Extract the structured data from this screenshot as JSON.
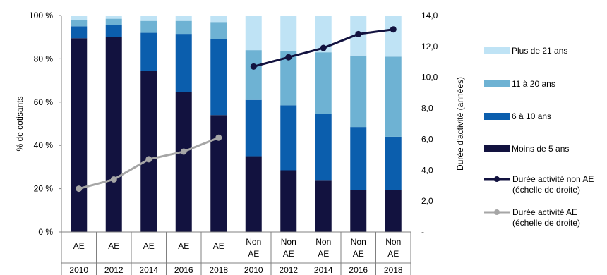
{
  "chart_data": {
    "type": "bar",
    "stacked": true,
    "category_groups": [
      {
        "label": "AE",
        "year": "2010"
      },
      {
        "label": "AE",
        "year": "2012"
      },
      {
        "label": "AE",
        "year": "2014"
      },
      {
        "label": "AE",
        "year": "2016"
      },
      {
        "label": "AE",
        "year": "2018"
      },
      {
        "label": "Non AE",
        "year": "2010"
      },
      {
        "label": "Non AE",
        "year": "2012"
      },
      {
        "label": "Non AE",
        "year": "2014"
      },
      {
        "label": "Non AE",
        "year": "2016"
      },
      {
        "label": "Non AE",
        "year": "2018"
      }
    ],
    "series": [
      {
        "name": "Moins de 5 ans",
        "color": "#12123f",
        "values": [
          89.5,
          90,
          74.5,
          64.5,
          54,
          35,
          28.5,
          24,
          19.5,
          19.5
        ]
      },
      {
        "name": "6 à 10 ans",
        "color": "#0b5ead",
        "values": [
          5.5,
          5.5,
          17.5,
          27,
          35,
          26,
          30,
          30.5,
          29,
          24.5
        ]
      },
      {
        "name": "11 à 20 ans",
        "color": "#6eb2d3",
        "values": [
          3,
          3,
          5.5,
          6,
          8,
          23,
          25,
          28.5,
          33,
          37
        ]
      },
      {
        "name": "Plus de 21 ans",
        "color": "#bfe3f5",
        "values": [
          2,
          1.5,
          2.5,
          2.5,
          3,
          16,
          16.5,
          17,
          18.5,
          19
        ]
      }
    ],
    "lines": [
      {
        "name": "Durée activité non AE (échelle de droite)",
        "color": "#12123f",
        "indices": [
          5,
          6,
          7,
          8,
          9
        ],
        "values": [
          10.7,
          11.3,
          11.9,
          12.8,
          13.1
        ]
      },
      {
        "name": "Durée activité AE (échelle de droite)",
        "color": "#a6a6a6",
        "indices": [
          0,
          1,
          2,
          3,
          4
        ],
        "values": [
          2.8,
          3.4,
          4.7,
          5.2,
          6.1
        ]
      }
    ],
    "ylabel": "% de cotisants",
    "y2label": "Durée d'activité (années)",
    "ylim": [
      0,
      100
    ],
    "y2lim": [
      0,
      14
    ],
    "yticks": [
      "0 %",
      "20 %",
      "40 %",
      "60 %",
      "80 %",
      "100 %"
    ],
    "y2ticks": [
      "-",
      "2,0",
      "4,0",
      "6,0",
      "8,0",
      "10,0",
      "12,0",
      "14,0"
    ],
    "legend_items": [
      {
        "label": "Plus de 21 ans",
        "kind": "box",
        "color": "#bfe3f5"
      },
      {
        "label": "11 à 20 ans",
        "kind": "box",
        "color": "#6eb2d3"
      },
      {
        "label": "6 à 10 ans",
        "kind": "box",
        "color": "#0b5ead"
      },
      {
        "label": "Moins de 5 ans",
        "kind": "box",
        "color": "#12123f"
      },
      {
        "label": [
          "Durée activité non AE",
          "(échelle de droite)"
        ],
        "kind": "line",
        "color": "#12123f"
      },
      {
        "label": [
          "Durée activité AE",
          "(échelle de droite)"
        ],
        "kind": "line",
        "color": "#a6a6a6"
      }
    ],
    "legend_position": "right",
    "grid": false
  }
}
